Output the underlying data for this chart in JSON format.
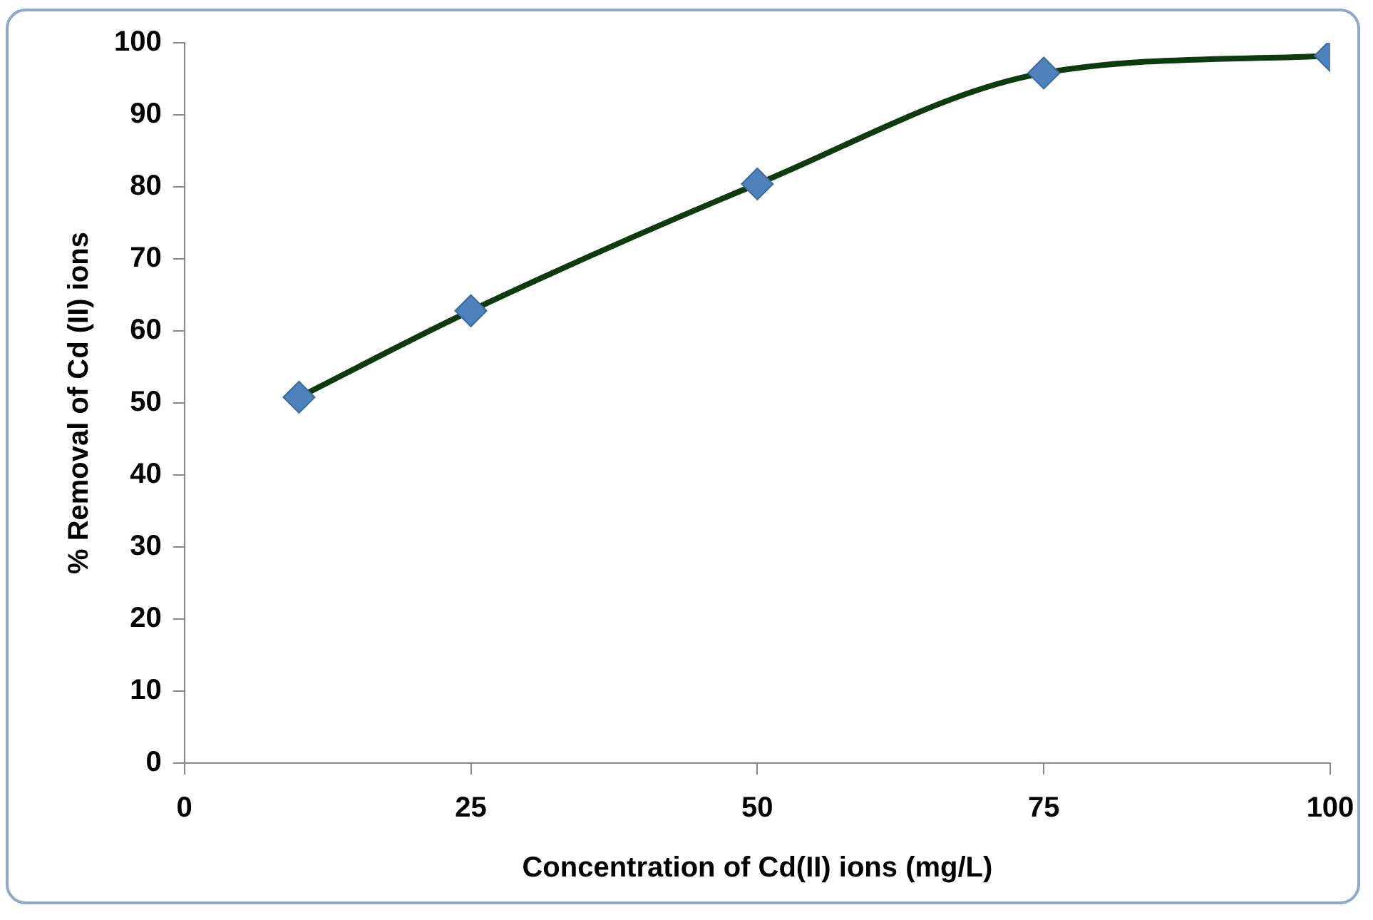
{
  "chart_data": {
    "type": "line",
    "xlabel": "Concentration of Cd(II) ions (mg/L)",
    "ylabel": "% Removal of Cd (II) ions",
    "series": [
      {
        "color": "#0d3b0d",
        "colors": [
          "#4f81bd",
          "#4f81bd",
          "#4f81bd",
          "#4f81bd",
          "#4f81bd"
        ],
        "x": [
          10,
          25,
          50,
          75,
          100
        ],
        "values": [
          50.8,
          62.8,
          80.4,
          95.8,
          98.2
        ]
      }
    ],
    "xlim": [
      0,
      100
    ],
    "xticks": [
      0,
      25,
      50,
      75,
      100
    ],
    "ylim": [
      0,
      100
    ],
    "yticks": [
      0,
      10,
      20,
      30,
      40,
      50,
      60,
      70,
      80,
      90,
      100
    ],
    "grid": false,
    "legend": false,
    "marker": "diamond",
    "line_style": "solid"
  }
}
